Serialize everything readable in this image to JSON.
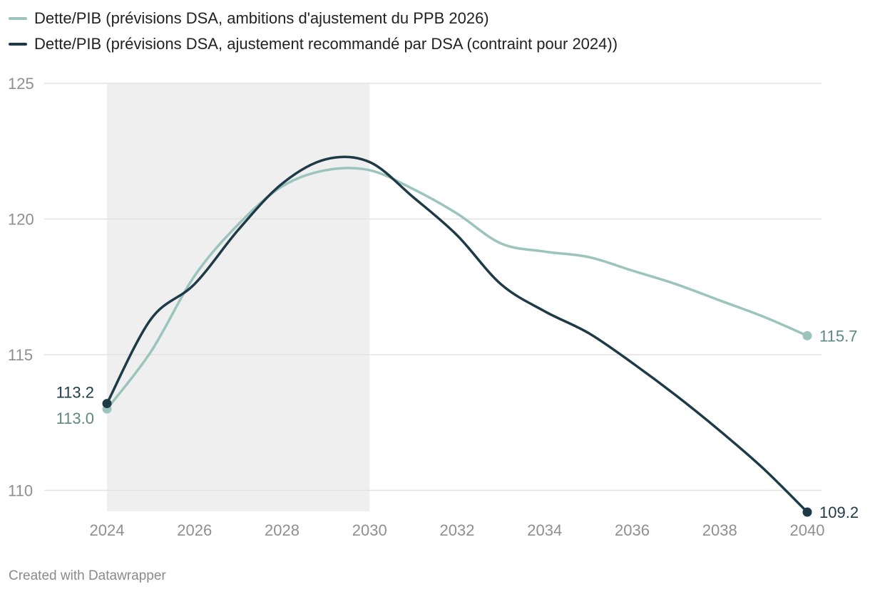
{
  "colors": {
    "series_light": "#9bc4bc",
    "series_dark": "#1f3a47",
    "grid": "#e2e2e2",
    "shade": "#efefef",
    "tick": "#8f8f8f"
  },
  "legend": [
    {
      "label": "Dette/PIB (prévisions DSA, ambitions d'ajustement du PPB 2026)",
      "color": "#9bc4bc"
    },
    {
      "label": "Dette/PIB (prévisions DSA, ajustement recommandé par DSA (contraint pour 2024))",
      "color": "#1f3a47"
    }
  ],
  "footer": {
    "credit": "Created with Datawrapper"
  },
  "chart_data": {
    "type": "line",
    "title": "",
    "xlabel": "",
    "ylabel": "",
    "x": [
      2024,
      2025,
      2026,
      2027,
      2028,
      2029,
      2030,
      2031,
      2032,
      2033,
      2034,
      2035,
      2036,
      2037,
      2038,
      2039,
      2040
    ],
    "xlim": [
      2024,
      2040
    ],
    "ylim": [
      109.2,
      125
    ],
    "yticks": [
      110,
      115,
      120,
      125
    ],
    "xticks": [
      2024,
      2026,
      2028,
      2030,
      2032,
      2034,
      2036,
      2038,
      2040
    ],
    "shaded_range": [
      2024,
      2030
    ],
    "grid": true,
    "legend_position": "top-left",
    "series": [
      {
        "name": "Dette/PIB (prévisions DSA, ambitions d'ajustement du PPB 2026)",
        "color": "#9bc4bc",
        "values": [
          113.0,
          115.1,
          117.9,
          119.8,
          121.2,
          121.8,
          121.8,
          121.1,
          120.2,
          119.1,
          118.8,
          118.6,
          118.1,
          117.6,
          117.0,
          116.4,
          115.7
        ],
        "end_labels": {
          "start": "113.0",
          "end": "115.7"
        }
      },
      {
        "name": "Dette/PIB (prévisions DSA, ajustement recommandé par DSA (contraint pour 2024))",
        "color": "#1f3a47",
        "values": [
          113.2,
          116.3,
          117.6,
          119.6,
          121.3,
          122.2,
          122.1,
          120.8,
          119.4,
          117.6,
          116.6,
          115.8,
          114.7,
          113.5,
          112.2,
          110.8,
          109.2
        ],
        "end_labels": {
          "start": "113.2",
          "end": "109.2"
        }
      }
    ]
  }
}
